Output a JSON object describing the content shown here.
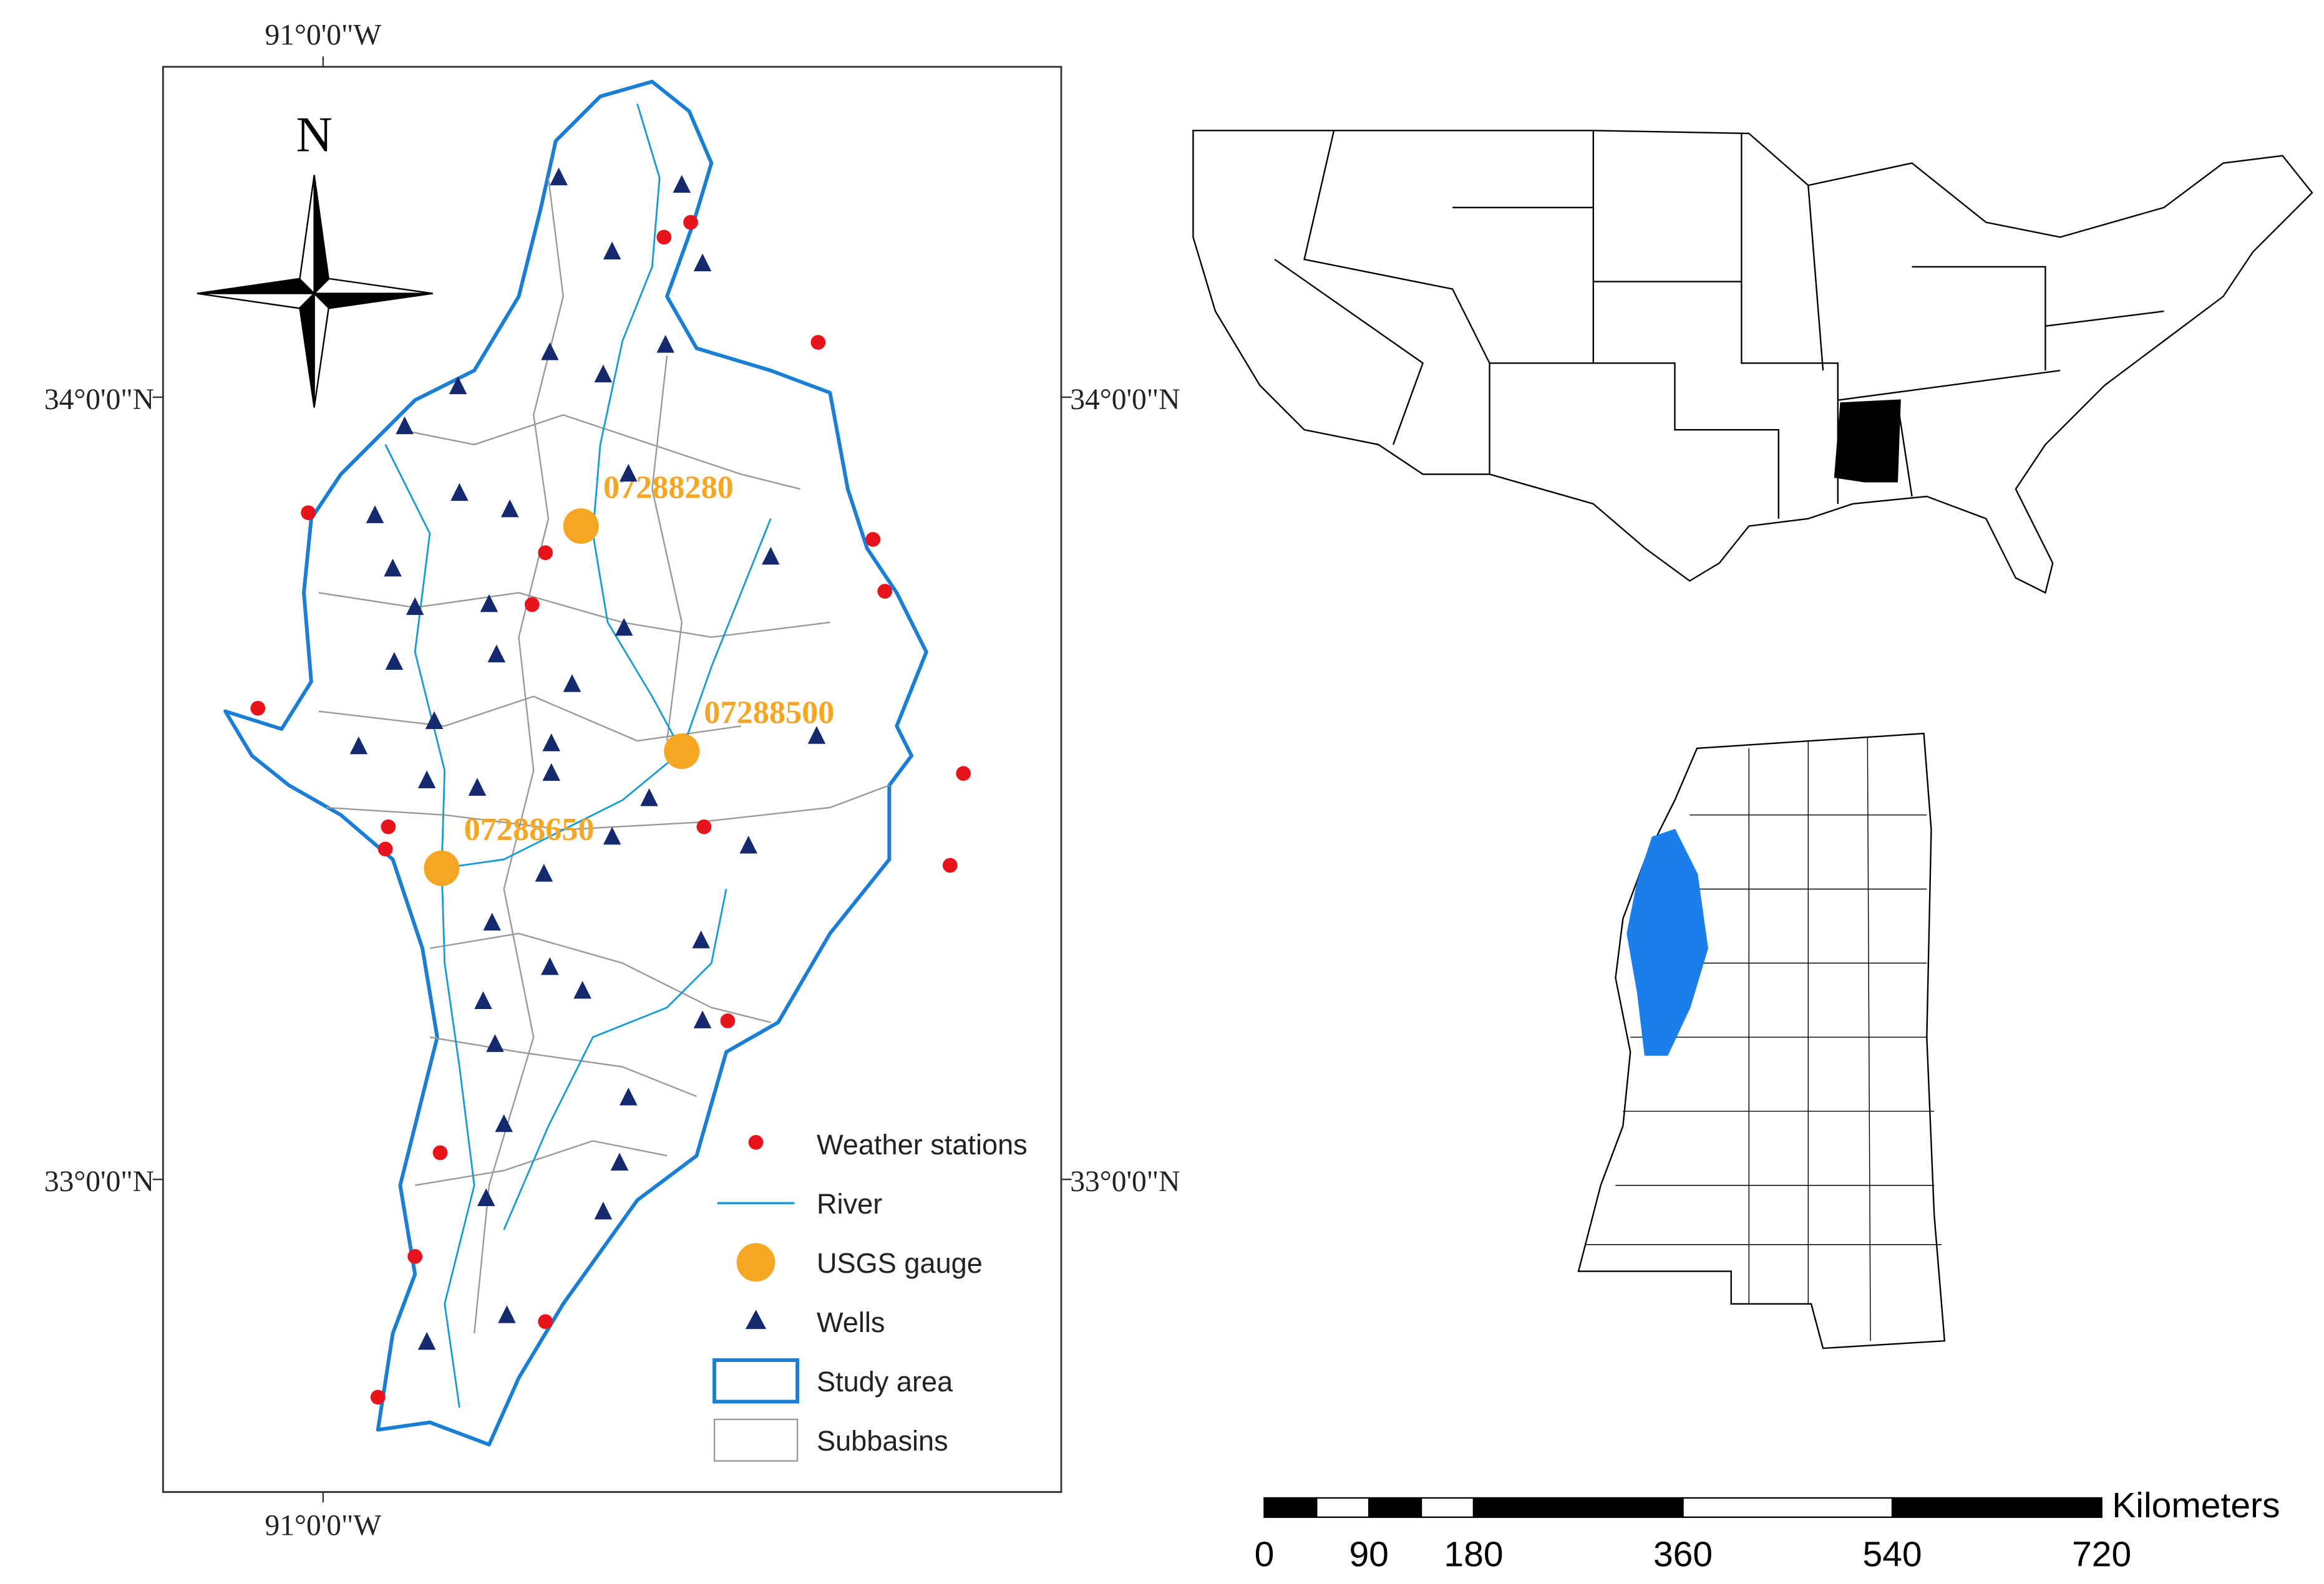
{
  "map": {
    "north_label": "N",
    "coordinates": {
      "lon_top": "91°0'0\"W",
      "lon_bottom": "91°0'0\"W",
      "lat34_left": "34°0'0\"N",
      "lat34_right": "34°0'0\"N",
      "lat33_left": "33°0'0\"N",
      "lat33_right": "33°0'0\"N"
    },
    "gauge_labels": [
      "07288280",
      "07288500",
      "07288650"
    ]
  },
  "legend": [
    "Weather stations",
    "River",
    "USGS gauge",
    "Wells",
    "Study area",
    "Subbasins"
  ],
  "scale_bar": {
    "unit": "Kilometers",
    "ticks": [
      0,
      90,
      180,
      360,
      540,
      720
    ]
  }
}
